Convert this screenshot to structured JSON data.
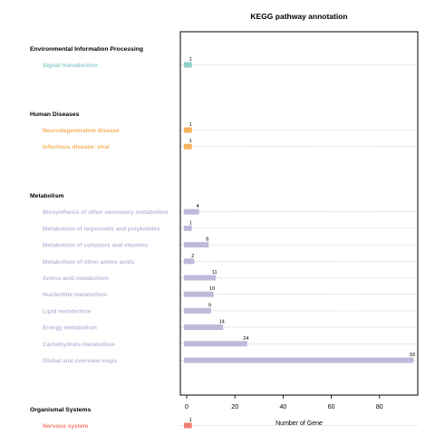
{
  "chart_data": {
    "type": "bar",
    "orientation": "horizontal",
    "title": "KEGG pathway annotation",
    "xlabel": "Number of Gene",
    "ylabel": "",
    "xlim": [
      -3,
      97
    ],
    "xticks": [
      0,
      20,
      40,
      60,
      80
    ],
    "grid": "dotted horizontal guide per category",
    "legend": "none",
    "groups": [
      {
        "name": "Environmental Information Processing",
        "color": "#8ecfc9",
        "categories": [
          "Signal transduction"
        ],
        "values": [
          1
        ]
      },
      {
        "name": "Human Diseases",
        "color": "#f5b25f",
        "categories": [
          "Neurodegenerative disease",
          "Infectious disease: viral"
        ],
        "values": [
          1,
          1
        ]
      },
      {
        "name": "Metabolism",
        "color": "#bebadb",
        "categories": [
          "Biosynthesis of other secondary metabolites",
          "Metabolism of terpenoids and polyketides",
          "Metabolism of cofactors and vitamins",
          "Metabolism of other amino acids",
          "Amino acid metabolism",
          "Nucleotide metabolism",
          "Lipid metabolism",
          "Energy metabolism",
          "Carbohydrate metabolism",
          "Global and overview maps"
        ],
        "values": [
          4,
          1,
          8,
          2,
          11,
          10,
          9,
          14,
          24,
          93
        ]
      },
      {
        "name": "Organismal Systems",
        "color": "#f08070",
        "categories": [
          "Nervous system"
        ],
        "values": [
          1
        ]
      }
    ]
  }
}
